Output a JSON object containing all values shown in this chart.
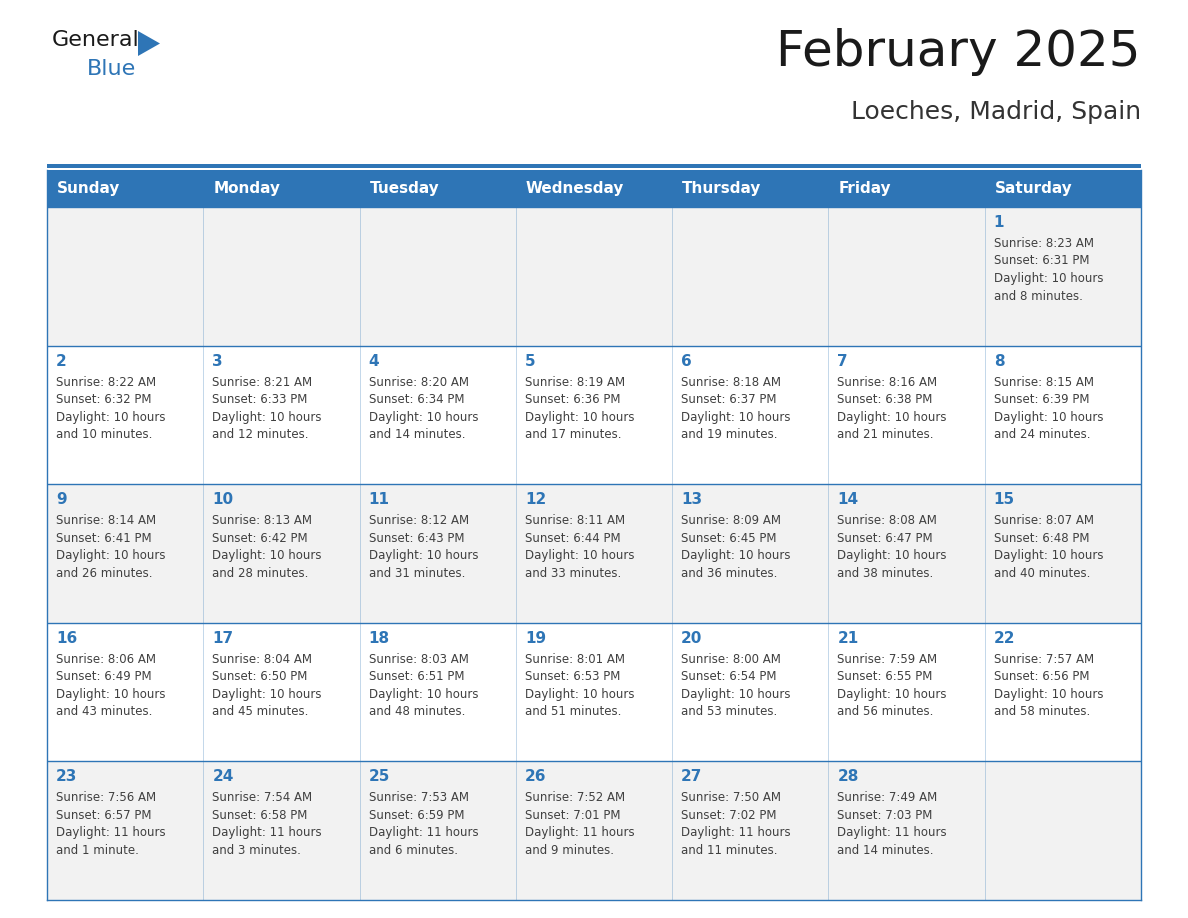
{
  "title": "February 2025",
  "subtitle": "Loeches, Madrid, Spain",
  "header_bg": "#2E75B6",
  "header_text_color": "#FFFFFF",
  "cell_bg_light": "#F2F2F2",
  "cell_bg_white": "#FFFFFF",
  "day_text_color": "#2E75B6",
  "info_text_color": "#404040",
  "days_of_week": [
    "Sunday",
    "Monday",
    "Tuesday",
    "Wednesday",
    "Thursday",
    "Friday",
    "Saturday"
  ],
  "weeks": [
    [
      {
        "day": "",
        "info": ""
      },
      {
        "day": "",
        "info": ""
      },
      {
        "day": "",
        "info": ""
      },
      {
        "day": "",
        "info": ""
      },
      {
        "day": "",
        "info": ""
      },
      {
        "day": "",
        "info": ""
      },
      {
        "day": "1",
        "info": "Sunrise: 8:23 AM\nSunset: 6:31 PM\nDaylight: 10 hours\nand 8 minutes."
      }
    ],
    [
      {
        "day": "2",
        "info": "Sunrise: 8:22 AM\nSunset: 6:32 PM\nDaylight: 10 hours\nand 10 minutes."
      },
      {
        "day": "3",
        "info": "Sunrise: 8:21 AM\nSunset: 6:33 PM\nDaylight: 10 hours\nand 12 minutes."
      },
      {
        "day": "4",
        "info": "Sunrise: 8:20 AM\nSunset: 6:34 PM\nDaylight: 10 hours\nand 14 minutes."
      },
      {
        "day": "5",
        "info": "Sunrise: 8:19 AM\nSunset: 6:36 PM\nDaylight: 10 hours\nand 17 minutes."
      },
      {
        "day": "6",
        "info": "Sunrise: 8:18 AM\nSunset: 6:37 PM\nDaylight: 10 hours\nand 19 minutes."
      },
      {
        "day": "7",
        "info": "Sunrise: 8:16 AM\nSunset: 6:38 PM\nDaylight: 10 hours\nand 21 minutes."
      },
      {
        "day": "8",
        "info": "Sunrise: 8:15 AM\nSunset: 6:39 PM\nDaylight: 10 hours\nand 24 minutes."
      }
    ],
    [
      {
        "day": "9",
        "info": "Sunrise: 8:14 AM\nSunset: 6:41 PM\nDaylight: 10 hours\nand 26 minutes."
      },
      {
        "day": "10",
        "info": "Sunrise: 8:13 AM\nSunset: 6:42 PM\nDaylight: 10 hours\nand 28 minutes."
      },
      {
        "day": "11",
        "info": "Sunrise: 8:12 AM\nSunset: 6:43 PM\nDaylight: 10 hours\nand 31 minutes."
      },
      {
        "day": "12",
        "info": "Sunrise: 8:11 AM\nSunset: 6:44 PM\nDaylight: 10 hours\nand 33 minutes."
      },
      {
        "day": "13",
        "info": "Sunrise: 8:09 AM\nSunset: 6:45 PM\nDaylight: 10 hours\nand 36 minutes."
      },
      {
        "day": "14",
        "info": "Sunrise: 8:08 AM\nSunset: 6:47 PM\nDaylight: 10 hours\nand 38 minutes."
      },
      {
        "day": "15",
        "info": "Sunrise: 8:07 AM\nSunset: 6:48 PM\nDaylight: 10 hours\nand 40 minutes."
      }
    ],
    [
      {
        "day": "16",
        "info": "Sunrise: 8:06 AM\nSunset: 6:49 PM\nDaylight: 10 hours\nand 43 minutes."
      },
      {
        "day": "17",
        "info": "Sunrise: 8:04 AM\nSunset: 6:50 PM\nDaylight: 10 hours\nand 45 minutes."
      },
      {
        "day": "18",
        "info": "Sunrise: 8:03 AM\nSunset: 6:51 PM\nDaylight: 10 hours\nand 48 minutes."
      },
      {
        "day": "19",
        "info": "Sunrise: 8:01 AM\nSunset: 6:53 PM\nDaylight: 10 hours\nand 51 minutes."
      },
      {
        "day": "20",
        "info": "Sunrise: 8:00 AM\nSunset: 6:54 PM\nDaylight: 10 hours\nand 53 minutes."
      },
      {
        "day": "21",
        "info": "Sunrise: 7:59 AM\nSunset: 6:55 PM\nDaylight: 10 hours\nand 56 minutes."
      },
      {
        "day": "22",
        "info": "Sunrise: 7:57 AM\nSunset: 6:56 PM\nDaylight: 10 hours\nand 58 minutes."
      }
    ],
    [
      {
        "day": "23",
        "info": "Sunrise: 7:56 AM\nSunset: 6:57 PM\nDaylight: 11 hours\nand 1 minute."
      },
      {
        "day": "24",
        "info": "Sunrise: 7:54 AM\nSunset: 6:58 PM\nDaylight: 11 hours\nand 3 minutes."
      },
      {
        "day": "25",
        "info": "Sunrise: 7:53 AM\nSunset: 6:59 PM\nDaylight: 11 hours\nand 6 minutes."
      },
      {
        "day": "26",
        "info": "Sunrise: 7:52 AM\nSunset: 7:01 PM\nDaylight: 11 hours\nand 9 minutes."
      },
      {
        "day": "27",
        "info": "Sunrise: 7:50 AM\nSunset: 7:02 PM\nDaylight: 11 hours\nand 11 minutes."
      },
      {
        "day": "28",
        "info": "Sunrise: 7:49 AM\nSunset: 7:03 PM\nDaylight: 11 hours\nand 14 minutes."
      },
      {
        "day": "",
        "info": ""
      }
    ]
  ],
  "logo_text1": "General",
  "logo_text2": "Blue",
  "logo_color1": "#1a1a1a",
  "logo_color2": "#2E75B6",
  "logo_triangle_color": "#2E75B6",
  "title_color": "#1a1a1a",
  "subtitle_color": "#333333",
  "border_color": "#2E75B6",
  "separator_color": "#2E75B6",
  "title_fontsize": 36,
  "subtitle_fontsize": 18,
  "header_fontsize": 11,
  "day_number_fontsize": 11,
  "info_fontsize": 8.5
}
